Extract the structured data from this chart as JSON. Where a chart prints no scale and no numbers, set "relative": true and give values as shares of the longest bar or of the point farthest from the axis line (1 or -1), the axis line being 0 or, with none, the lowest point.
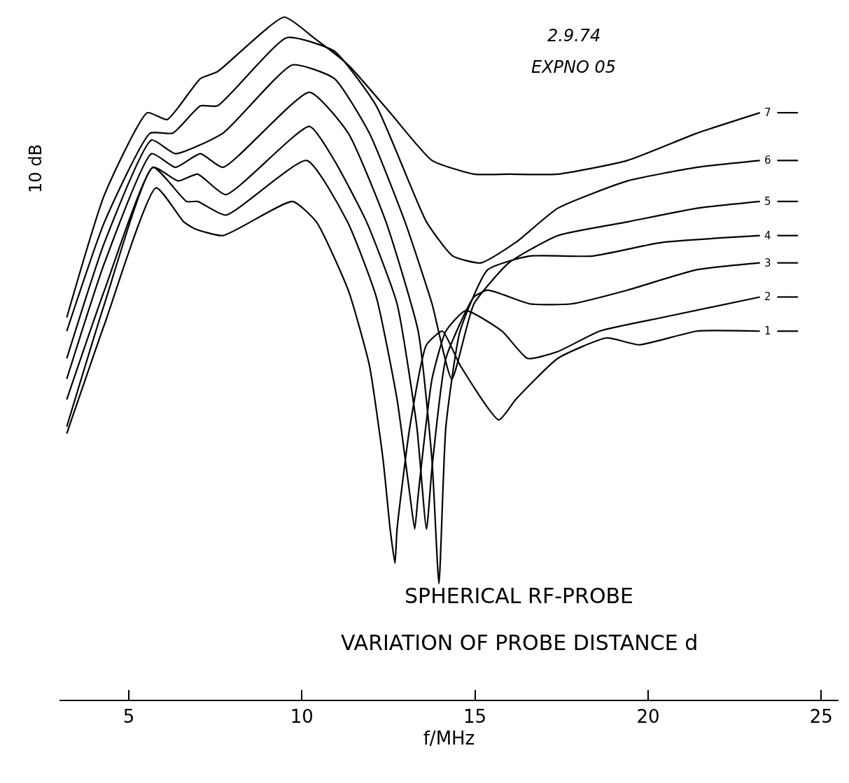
{
  "chart_data": {
    "type": "line",
    "relative": true,
    "title": "SPHERICAL RF-PROBE",
    "subtitle": "VARIATION OF PROBE DISTANCE d",
    "xlabel": "f/MHz",
    "ylabel": "10 dB",
    "annotations": [
      "2.9.74",
      "EXPNO 05"
    ],
    "xlim": [
      3,
      25.5
    ],
    "xticks": [
      5,
      10,
      15,
      20,
      25
    ],
    "legend": "right",
    "marker": "none",
    "line_style": "solid",
    "series": [
      {
        "name": "1",
        "color": "#000000",
        "x": [
          3.21,
          4.3,
          5.79,
          6.59,
          6.91,
          7.72,
          9.73,
          10.42,
          11.34,
          11.95,
          12.35,
          12.55,
          12.69,
          12.75,
          13.12,
          13.6,
          14.06,
          14.57,
          15.69,
          16.18,
          17.39,
          18.8,
          19.74,
          21.41,
          23.23
        ],
        "values": [
          0.39,
          0.55,
          0.75,
          0.7,
          0.69,
          0.68,
          0.73,
          0.7,
          0.6,
          0.49,
          0.35,
          0.25,
          0.2,
          0.25,
          0.4,
          0.52,
          0.54,
          0.49,
          0.41,
          0.44,
          0.5,
          0.53,
          0.52,
          0.54,
          0.54
        ]
      },
      {
        "name": "2",
        "color": "#000000",
        "x": [
          3.21,
          4.3,
          5.7,
          6.67,
          6.99,
          7.8,
          10.14,
          11.32,
          12.15,
          12.75,
          13.12,
          13.26,
          13.36,
          13.76,
          14.16,
          14.73,
          15.78,
          16.52,
          17.39,
          18.6,
          20.41,
          23.23
        ],
        "values": [
          0.4,
          0.58,
          0.78,
          0.73,
          0.73,
          0.71,
          0.79,
          0.7,
          0.59,
          0.44,
          0.3,
          0.25,
          0.3,
          0.47,
          0.54,
          0.57,
          0.54,
          0.5,
          0.51,
          0.54,
          0.56,
          0.59
        ]
      },
      {
        "name": "3",
        "color": "#000000",
        "x": [
          3.21,
          4.3,
          5.7,
          6.43,
          6.99,
          7.8,
          10.22,
          10.94,
          11.87,
          12.75,
          13.32,
          13.6,
          13.76,
          14.16,
          14.97,
          15.37,
          16.58,
          17.79,
          19.4,
          21.41,
          23.23
        ],
        "values": [
          0.44,
          0.6,
          0.78,
          0.76,
          0.77,
          0.74,
          0.84,
          0.79,
          0.7,
          0.58,
          0.4,
          0.25,
          0.34,
          0.5,
          0.59,
          0.6,
          0.58,
          0.58,
          0.6,
          0.63,
          0.64
        ]
      },
      {
        "name": "4",
        "color": "#000000",
        "x": [
          3.21,
          4.3,
          5.66,
          6.35,
          7.07,
          7.72,
          10.22,
          11.34,
          12.43,
          13.36,
          13.76,
          13.96,
          14.16,
          14.57,
          15.37,
          16.58,
          18.39,
          20.41,
          23.23
        ],
        "values": [
          0.47,
          0.64,
          0.8,
          0.78,
          0.8,
          0.78,
          0.89,
          0.83,
          0.7,
          0.54,
          0.35,
          0.17,
          0.4,
          0.54,
          0.63,
          0.65,
          0.65,
          0.67,
          0.68
        ]
      },
      {
        "name": "5",
        "color": "#000000",
        "x": [
          3.21,
          4.3,
          5.66,
          6.35,
          7.72,
          9.73,
          10.94,
          11.95,
          12.98,
          13.76,
          14.33,
          14.97,
          15.98,
          17.39,
          19.4,
          21.41,
          23.23
        ],
        "values": [
          0.5,
          0.67,
          0.82,
          0.8,
          0.83,
          0.93,
          0.91,
          0.83,
          0.7,
          0.58,
          0.47,
          0.58,
          0.64,
          0.68,
          0.7,
          0.72,
          0.73
        ]
      },
      {
        "name": "6",
        "color": "#000000",
        "x": [
          3.21,
          4.3,
          5.62,
          6.27,
          7.07,
          7.56,
          9.57,
          10.94,
          12.15,
          13.6,
          14.36,
          15.17,
          16.18,
          17.39,
          19.4,
          21.41,
          23.23
        ],
        "values": [
          0.54,
          0.7,
          0.83,
          0.83,
          0.87,
          0.87,
          0.97,
          0.95,
          0.87,
          0.7,
          0.65,
          0.64,
          0.67,
          0.72,
          0.76,
          0.78,
          0.79
        ]
      },
      {
        "name": "7",
        "color": "#000000",
        "x": [
          3.21,
          4.3,
          5.54,
          6.11,
          7.07,
          7.56,
          9.49,
          10.34,
          11.34,
          12.55,
          13.76,
          14.97,
          15.98,
          17.39,
          19.4,
          21.41,
          23.23
        ],
        "values": [
          0.56,
          0.74,
          0.86,
          0.85,
          0.91,
          0.92,
          1.0,
          0.97,
          0.93,
          0.86,
          0.79,
          0.77,
          0.77,
          0.77,
          0.79,
          0.83,
          0.86
        ]
      }
    ]
  }
}
